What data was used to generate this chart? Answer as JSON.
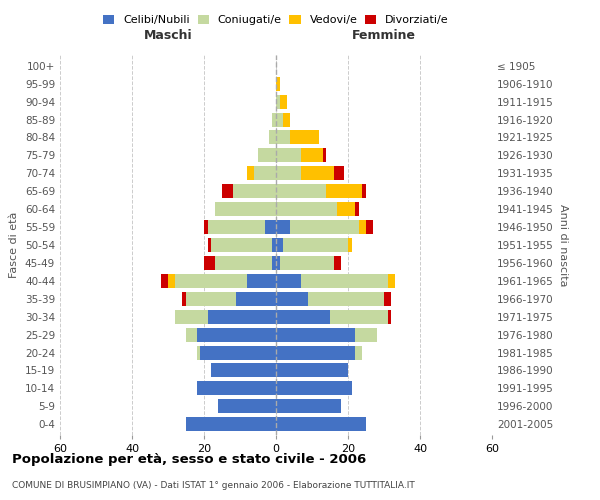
{
  "age_groups": [
    "0-4",
    "5-9",
    "10-14",
    "15-19",
    "20-24",
    "25-29",
    "30-34",
    "35-39",
    "40-44",
    "45-49",
    "50-54",
    "55-59",
    "60-64",
    "65-69",
    "70-74",
    "75-79",
    "80-84",
    "85-89",
    "90-94",
    "95-99",
    "100+"
  ],
  "birth_years": [
    "2001-2005",
    "1996-2000",
    "1991-1995",
    "1986-1990",
    "1981-1985",
    "1976-1980",
    "1971-1975",
    "1966-1970",
    "1961-1965",
    "1956-1960",
    "1951-1955",
    "1946-1950",
    "1941-1945",
    "1936-1940",
    "1931-1935",
    "1926-1930",
    "1921-1925",
    "1916-1920",
    "1911-1915",
    "1906-1910",
    "≤ 1905"
  ],
  "colors": {
    "celibe": "#4472C4",
    "coniugato": "#c5d9a0",
    "vedovo": "#ffc000",
    "divorziato": "#cc0000"
  },
  "males": {
    "celibe": [
      25,
      16,
      22,
      18,
      21,
      22,
      19,
      11,
      8,
      1,
      1,
      3,
      0,
      0,
      0,
      0,
      0,
      0,
      0,
      0,
      0
    ],
    "coniugato": [
      0,
      0,
      0,
      0,
      1,
      3,
      9,
      14,
      20,
      16,
      17,
      16,
      17,
      12,
      6,
      5,
      2,
      1,
      0,
      0,
      0
    ],
    "vedovo": [
      0,
      0,
      0,
      0,
      0,
      0,
      0,
      0,
      2,
      0,
      0,
      0,
      0,
      0,
      2,
      0,
      0,
      0,
      0,
      0,
      0
    ],
    "divorziato": [
      0,
      0,
      0,
      0,
      0,
      0,
      0,
      1,
      2,
      3,
      1,
      1,
      0,
      3,
      0,
      0,
      0,
      0,
      0,
      0,
      0
    ]
  },
  "females": {
    "nubile": [
      25,
      18,
      21,
      20,
      22,
      22,
      15,
      9,
      7,
      1,
      2,
      4,
      0,
      0,
      0,
      0,
      0,
      0,
      0,
      0,
      0
    ],
    "coniugata": [
      0,
      0,
      0,
      0,
      2,
      6,
      16,
      21,
      24,
      15,
      18,
      19,
      17,
      14,
      7,
      7,
      4,
      2,
      1,
      0,
      0
    ],
    "vedova": [
      0,
      0,
      0,
      0,
      0,
      0,
      0,
      0,
      2,
      0,
      1,
      2,
      5,
      10,
      9,
      6,
      8,
      2,
      2,
      1,
      0
    ],
    "divorziata": [
      0,
      0,
      0,
      0,
      0,
      0,
      1,
      2,
      0,
      2,
      0,
      2,
      1,
      1,
      3,
      1,
      0,
      0,
      0,
      0,
      0
    ]
  },
  "title": "Popolazione per età, sesso e stato civile - 2006",
  "subtitle": "COMUNE DI BRUSIMPIANO (VA) - Dati ISTAT 1° gennaio 2006 - Elaborazione TUTTITALIA.IT",
  "xlabel_left": "Maschi",
  "xlabel_right": "Femmine",
  "ylabel_left": "Fasce di età",
  "ylabel_right": "Anni di nascita",
  "xlim": 60,
  "bg_color": "#ffffff",
  "grid_color": "#cccccc"
}
